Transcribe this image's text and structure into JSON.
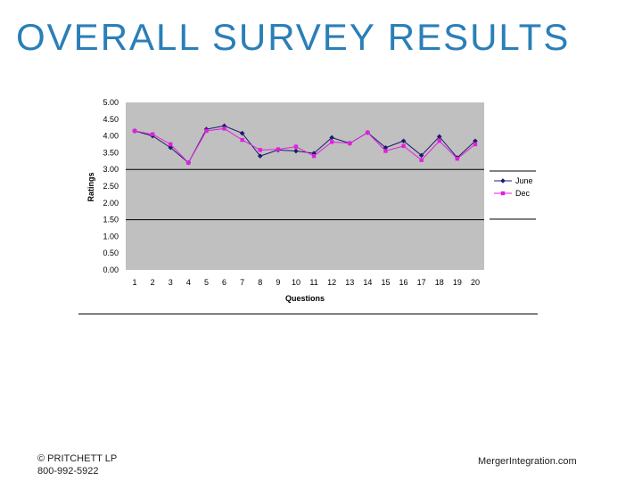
{
  "slide": {
    "title": "OVERALL SURVEY RESULTS",
    "footer_left_line1": "© PRITCHETT LP",
    "footer_left_line2": "800-992-5922",
    "footer_right": "MergerIntegration.com"
  },
  "chart_data": {
    "type": "line",
    "title": "",
    "xlabel": "Questions",
    "ylabel": "Ratings",
    "ylim": [
      0,
      5
    ],
    "yticks": [
      "0.00",
      "0.50",
      "1.00",
      "1.50",
      "2.00",
      "2.50",
      "3.00",
      "3.50",
      "4.00",
      "4.50",
      "5.00"
    ],
    "categories": [
      "1",
      "2",
      "3",
      "4",
      "5",
      "6",
      "7",
      "8",
      "9",
      "10",
      "11",
      "12",
      "13",
      "14",
      "15",
      "16",
      "17",
      "18",
      "19",
      "20"
    ],
    "grid": "major y at 1.50 and 3.00",
    "legend_position": "right",
    "plot_background": "#c0c0c0",
    "series": [
      {
        "name": "June",
        "color": "#1c1c6e",
        "marker": "diamond",
        "values": [
          4.15,
          4.0,
          3.65,
          3.2,
          4.2,
          4.3,
          4.08,
          3.4,
          3.58,
          3.55,
          3.48,
          3.95,
          3.78,
          4.1,
          3.65,
          3.85,
          3.42,
          3.98,
          3.35,
          3.85
        ]
      },
      {
        "name": "Dec",
        "color": "#e020e0",
        "marker": "square",
        "values": [
          4.15,
          4.05,
          3.75,
          3.2,
          4.15,
          4.22,
          3.88,
          3.58,
          3.6,
          3.68,
          3.4,
          3.82,
          3.78,
          4.1,
          3.55,
          3.7,
          3.28,
          3.85,
          3.32,
          3.75
        ]
      }
    ]
  }
}
